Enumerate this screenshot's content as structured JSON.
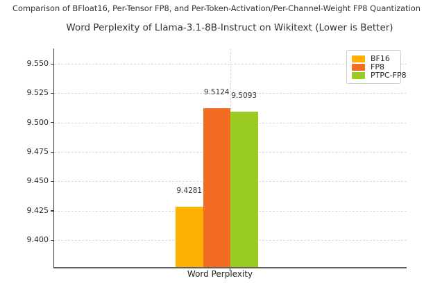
{
  "figure": {
    "suptitle": "Comparison of BFloat16, Per-Tensor FP8, and Per-Token-Activation/Per-Channel-Weight FP8 Quantization"
  },
  "chart_data": {
    "type": "bar",
    "title": "Word Perplexity of Llama-3.1-8B-Instruct on Wikitext (Lower is Better)",
    "categories": [
      "Word Perplexity"
    ],
    "series": [
      {
        "name": "BF16",
        "values": [
          9.4281
        ],
        "value_labels": [
          "9.4281"
        ],
        "color": "#FFB005"
      },
      {
        "name": "FP8",
        "values": [
          9.5124
        ],
        "value_labels": [
          "9.5124"
        ],
        "color": "#F26C21"
      },
      {
        "name": "PTPC-FP8",
        "values": [
          9.5093
        ],
        "value_labels": [
          "9.5093"
        ],
        "color": "#9ACB21"
      }
    ],
    "xlabel": "Word Perplexity",
    "ylabel": "",
    "ylim": [
      9.377,
      9.563
    ],
    "yticks": [
      9.4,
      9.425,
      9.45,
      9.475,
      9.5,
      9.525,
      9.55
    ],
    "ytick_labels": [
      "9.400",
      "9.425",
      "9.450",
      "9.475",
      "9.500",
      "9.525",
      "9.550"
    ],
    "grid": true,
    "grid_style": "dashed",
    "legend": {
      "position": "upper right",
      "entries": [
        "BF16",
        "FP8",
        "PTPC-FP8"
      ]
    }
  }
}
